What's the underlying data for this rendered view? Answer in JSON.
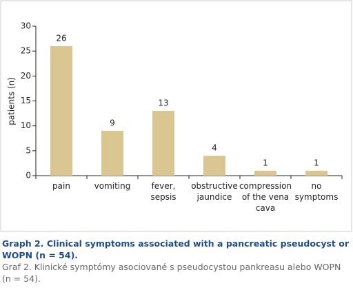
{
  "chart_data": {
    "type": "bar",
    "title": "Graph 2. Clinical symptoms associated with a pancreatic pseudocyst or WOPN (n = 54).",
    "subtitle": "Graf 2. Klinické symptómy asociované s pseudocystou pankreasu alebo WOPN (n = 54).",
    "y_label": "patients (n)",
    "categories": [
      "pain",
      "vomiting",
      "fever,\nsepsis",
      "obstructive\njaundice",
      "compression\nof the vena\ncava",
      "no\nsymptoms"
    ],
    "values": [
      26,
      9,
      13,
      4,
      1,
      1
    ],
    "color": "#dac691",
    "ylim": [
      0,
      30
    ],
    "yticks": [
      0,
      5,
      10,
      15,
      20,
      25,
      30
    ]
  }
}
